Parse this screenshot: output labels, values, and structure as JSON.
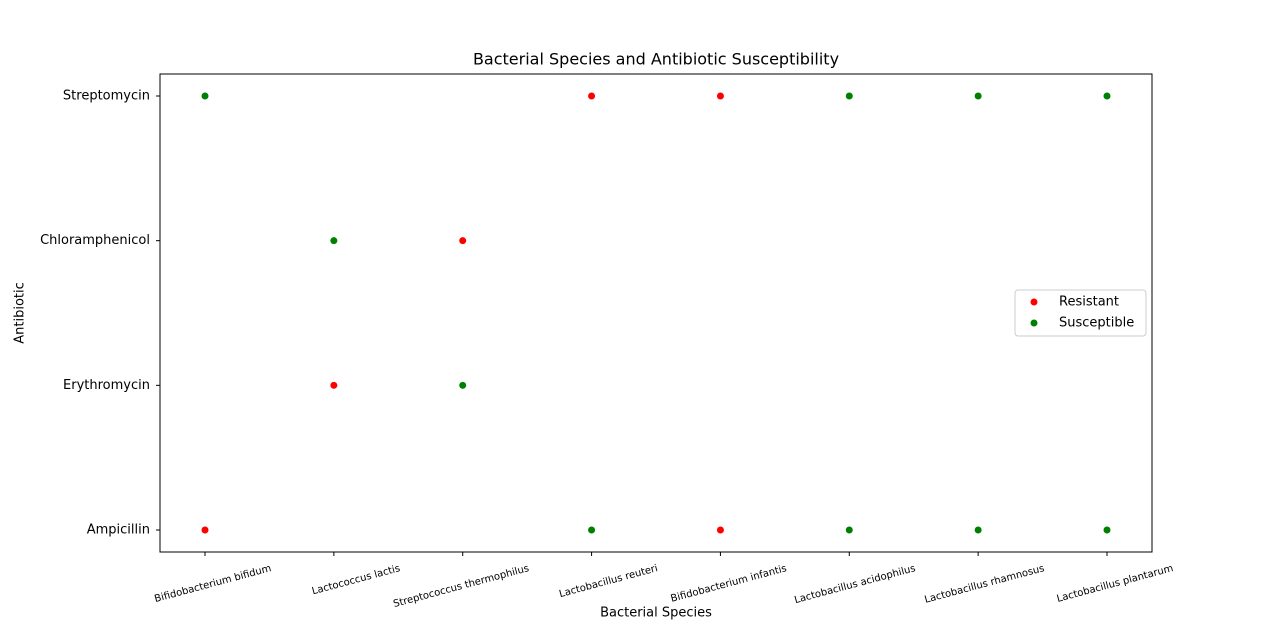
{
  "chart_data": {
    "type": "scatter",
    "title": "Bacterial Species and Antibiotic Susceptibility",
    "x_label": "Bacterial Species",
    "y_label": "Antibiotic",
    "categories": [
      "Bifidobacterium bifidum",
      "Lactococcus lactis",
      "Streptococcus thermophilus",
      "Lactobacillus reuteri",
      "Bifidobacterium infantis",
      "Lactobacillus acidophilus",
      "Lactobacillus rhamnosus",
      "Lactobacillus plantarum"
    ],
    "y_categories": [
      "Ampicillin",
      "Erythromycin",
      "Chloramphenicol",
      "Streptomycin"
    ],
    "legend": "center right",
    "series": [
      {
        "name": "Resistant",
        "color": "#ff0000",
        "x": [
          "Bifidobacterium bifidum",
          "Lactococcus lactis",
          "Streptococcus thermophilus",
          "Lactobacillus reuteri",
          "Bifidobacterium infantis",
          "Bifidobacterium infantis"
        ],
        "y": [
          "Ampicillin",
          "Erythromycin",
          "Chloramphenicol",
          "Streptomycin",
          "Streptomycin",
          "Ampicillin"
        ]
      },
      {
        "name": "Susceptible",
        "color": "#008000",
        "x": [
          "Bifidobacterium bifidum",
          "Lactococcus lactis",
          "Streptococcus thermophilus",
          "Lactobacillus reuteri",
          "Lactobacillus acidophilus",
          "Lactobacillus acidophilus",
          "Lactobacillus rhamnosus",
          "Lactobacillus rhamnosus",
          "Lactobacillus plantarum",
          "Lactobacillus plantarum"
        ],
        "y": [
          "Streptomycin",
          "Chloramphenicol",
          "Erythromycin",
          "Ampicillin",
          "Streptomycin",
          "Ampicillin",
          "Streptomycin",
          "Ampicillin",
          "Streptomycin",
          "Ampicillin"
        ]
      }
    ]
  }
}
